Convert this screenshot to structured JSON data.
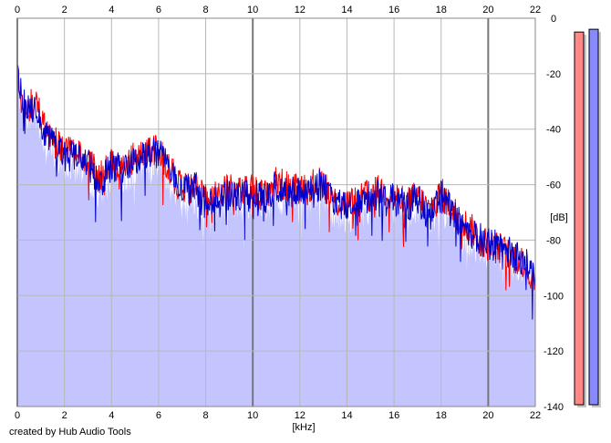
{
  "chart_data": {
    "type": "area",
    "title": "",
    "xlabel": "[kHz]",
    "ylabel": "[dB]",
    "xlim": [
      0,
      22
    ],
    "ylim": [
      -140,
      0
    ],
    "grid": true,
    "x_ticks": [
      "0",
      "2",
      "4",
      "6",
      "8",
      "10",
      "12",
      "14",
      "16",
      "18",
      "20",
      "22"
    ],
    "y_ticks": [
      "0",
      "-20",
      "-40",
      "-60",
      "-80",
      "-100",
      "-120",
      "-140"
    ],
    "background_fill_color": "#c4c4ff",
    "series": [
      {
        "color": "#ff0000",
        "x": [
          0,
          0.25,
          0.5,
          0.75,
          1,
          1.5,
          2,
          2.5,
          3,
          3.5,
          4,
          4.5,
          5,
          5.5,
          6,
          6.5,
          7,
          7.5,
          8,
          8.5,
          9,
          9.5,
          10,
          10.5,
          11,
          11.5,
          12,
          12.5,
          13,
          13.5,
          14,
          14.5,
          15,
          15.5,
          16,
          16.5,
          17,
          17.5,
          18,
          18.5,
          19,
          19.5,
          20,
          20.5,
          21,
          21.5,
          22
        ],
        "values": [
          -22,
          -28,
          -32,
          -30,
          -36,
          -44,
          -48,
          -49,
          -51,
          -58,
          -52,
          -54,
          -50,
          -48,
          -47,
          -55,
          -62,
          -60,
          -66,
          -64,
          -62,
          -63,
          -62,
          -64,
          -59,
          -61,
          -61,
          -60,
          -59,
          -66,
          -67,
          -66,
          -63,
          -62,
          -64,
          -67,
          -64,
          -70,
          -63,
          -69,
          -74,
          -78,
          -82,
          -83,
          -86,
          -88,
          -96
        ]
      },
      {
        "color": "#0000cc",
        "x": [
          0,
          0.25,
          0.5,
          0.75,
          1,
          1.5,
          2,
          2.5,
          3,
          3.5,
          4,
          4.5,
          5,
          5.5,
          6,
          6.5,
          7,
          7.5,
          8,
          8.5,
          9,
          9.5,
          10,
          10.5,
          11,
          11.5,
          12,
          12.5,
          13,
          13.5,
          14,
          14.5,
          15,
          15.5,
          16,
          16.5,
          17,
          17.5,
          18,
          18.5,
          19,
          19.5,
          20,
          20.5,
          21,
          21.5,
          22
        ],
        "values": [
          -20,
          -30,
          -33,
          -31,
          -38,
          -45,
          -50,
          -50,
          -52,
          -60,
          -53,
          -55,
          -51,
          -49,
          -48,
          -56,
          -63,
          -61,
          -67,
          -65,
          -63,
          -64,
          -63,
          -65,
          -60,
          -62,
          -62,
          -61,
          -60,
          -67,
          -68,
          -67,
          -64,
          -63,
          -65,
          -68,
          -65,
          -71,
          -64,
          -70,
          -75,
          -79,
          -81,
          -82,
          -85,
          -87,
          -93
        ]
      }
    ],
    "level_meters": [
      {
        "color": "#ff8888",
        "level_db": -5
      },
      {
        "color": "#8888ff",
        "level_db": -4
      }
    ]
  },
  "credit": "created by Hub Audio Tools"
}
